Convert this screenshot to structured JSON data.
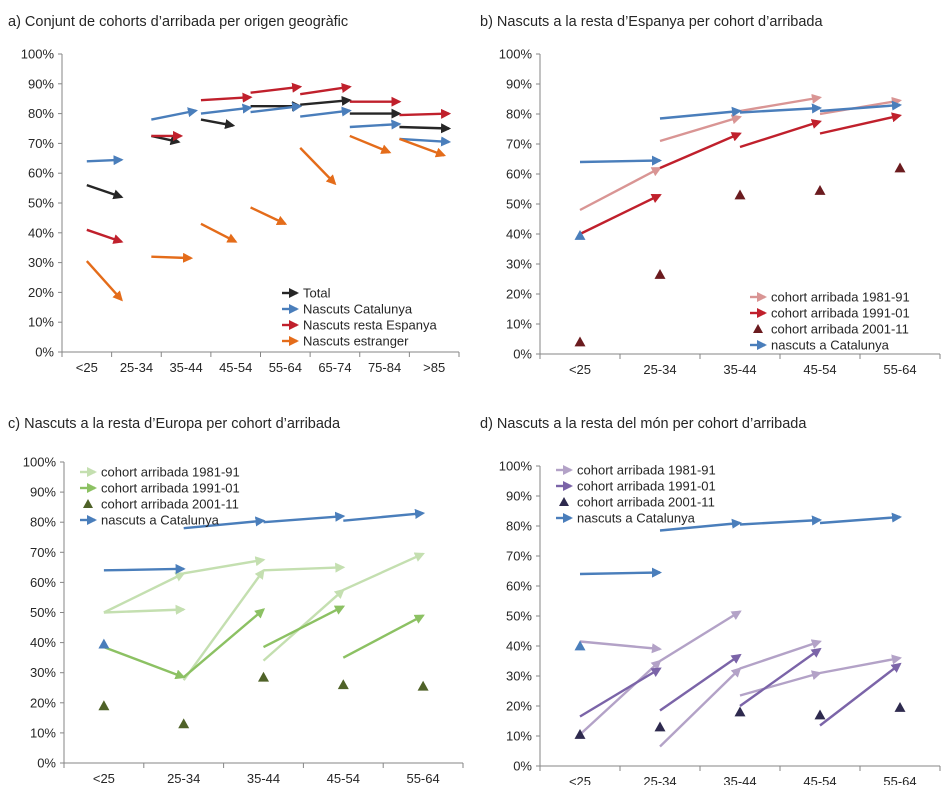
{
  "chart_data": [
    {
      "type": "arrow-scatter",
      "title": "a) Conjunt de cohorts d’arribada per origen geogràfic",
      "categories": [
        "<25",
        "25-34",
        "35-44",
        "45-54",
        "55-64",
        "65-74",
        "75-84",
        ">85"
      ],
      "yticks": [
        "0%",
        "10%",
        "20%",
        "30%",
        "40%",
        "50%",
        "60%",
        "70%",
        "80%",
        "90%",
        "100%"
      ],
      "ylim": [
        0,
        100
      ],
      "legend": {
        "placement": "bottom-right",
        "entries": [
          {
            "label": "Total",
            "color": "#262626",
            "kind": "arrow"
          },
          {
            "label": "Nascuts Catalunya",
            "color": "#4a7ebb",
            "kind": "arrow"
          },
          {
            "label": "Nascuts resta Espanya",
            "color": "#c0202c",
            "kind": "arrow"
          },
          {
            "label": "Nascuts estranger",
            "color": "#e46c1a",
            "kind": "arrow"
          }
        ]
      },
      "arrows": [
        {
          "color": "#262626",
          "x": [
            0.0,
            0.7
          ],
          "y": [
            56,
            52
          ]
        },
        {
          "color": "#262626",
          "x": [
            1.3,
            1.85
          ],
          "y": [
            72.5,
            70.5
          ]
        },
        {
          "color": "#262626",
          "x": [
            2.3,
            2.95
          ],
          "y": [
            78,
            76
          ]
        },
        {
          "color": "#262626",
          "x": [
            3.3,
            4.3
          ],
          "y": [
            82.5,
            82.5
          ]
        },
        {
          "color": "#262626",
          "x": [
            4.3,
            5.3
          ],
          "y": [
            83,
            84.5
          ]
        },
        {
          "color": "#262626",
          "x": [
            5.3,
            6.3
          ],
          "y": [
            80,
            80
          ]
        },
        {
          "color": "#262626",
          "x": [
            6.3,
            7.3
          ],
          "y": [
            75.5,
            75
          ]
        },
        {
          "color": "#4a7ebb",
          "x": [
            0.0,
            0.7
          ],
          "y": [
            64,
            64.5
          ]
        },
        {
          "color": "#4a7ebb",
          "x": [
            1.3,
            2.2
          ],
          "y": [
            78,
            81
          ]
        },
        {
          "color": "#4a7ebb",
          "x": [
            2.3,
            3.3
          ],
          "y": [
            80,
            82
          ]
        },
        {
          "color": "#4a7ebb",
          "x": [
            3.3,
            4.3
          ],
          "y": [
            80.5,
            82.5
          ]
        },
        {
          "color": "#4a7ebb",
          "x": [
            4.3,
            5.3
          ],
          "y": [
            79,
            81
          ]
        },
        {
          "color": "#4a7ebb",
          "x": [
            5.3,
            6.3
          ],
          "y": [
            75.5,
            76.5
          ]
        },
        {
          "color": "#4a7ebb",
          "x": [
            6.3,
            7.3
          ],
          "y": [
            71.5,
            70.5
          ]
        },
        {
          "color": "#c0202c",
          "x": [
            0.0,
            0.7
          ],
          "y": [
            41,
            37
          ]
        },
        {
          "color": "#c0202c",
          "x": [
            1.3,
            1.9
          ],
          "y": [
            72.5,
            72.5
          ]
        },
        {
          "color": "#c0202c",
          "x": [
            2.3,
            3.3
          ],
          "y": [
            84.5,
            85.5
          ]
        },
        {
          "color": "#c0202c",
          "x": [
            3.3,
            4.3
          ],
          "y": [
            87,
            89
          ]
        },
        {
          "color": "#c0202c",
          "x": [
            4.3,
            5.3
          ],
          "y": [
            86.5,
            89
          ]
        },
        {
          "color": "#c0202c",
          "x": [
            5.3,
            6.3
          ],
          "y": [
            84,
            84
          ]
        },
        {
          "color": "#c0202c",
          "x": [
            6.3,
            7.3
          ],
          "y": [
            79.5,
            80
          ]
        },
        {
          "color": "#e46c1a",
          "x": [
            0.0,
            0.7
          ],
          "y": [
            30.5,
            17.5
          ]
        },
        {
          "color": "#e46c1a",
          "x": [
            1.3,
            2.1
          ],
          "y": [
            32,
            31.5
          ]
        },
        {
          "color": "#e46c1a",
          "x": [
            2.3,
            3.0
          ],
          "y": [
            43,
            37
          ]
        },
        {
          "color": "#e46c1a",
          "x": [
            3.3,
            4.0
          ],
          "y": [
            48.5,
            43
          ]
        },
        {
          "color": "#e46c1a",
          "x": [
            4.3,
            5.0
          ],
          "y": [
            68.5,
            56.5
          ]
        },
        {
          "color": "#e46c1a",
          "x": [
            5.3,
            6.1
          ],
          "y": [
            72.5,
            67
          ]
        },
        {
          "color": "#e46c1a",
          "x": [
            6.3,
            7.2
          ],
          "y": [
            71.5,
            66
          ]
        }
      ],
      "markers": []
    },
    {
      "type": "arrow-scatter",
      "title": "b) Nascuts a la resta d’Espanya per cohort d’arribada",
      "categories": [
        "<25",
        "25-34",
        "35-44",
        "45-54",
        "55-64"
      ],
      "yticks": [
        "0%",
        "10%",
        "20%",
        "30%",
        "40%",
        "50%",
        "60%",
        "70%",
        "80%",
        "90%",
        "100%"
      ],
      "ylim": [
        0,
        100
      ],
      "legend": {
        "placement": "bottom-right",
        "entries": [
          {
            "label": "cohort arribada 1981-91",
            "color": "#d99594",
            "kind": "arrow"
          },
          {
            "label": "cohort arribada 1991-01",
            "color": "#c0202c",
            "kind": "arrow"
          },
          {
            "label": "cohort arribada 2001-11",
            "color": "#6b1b1f",
            "kind": "triangle"
          },
          {
            "label": "nascuts a Catalunya",
            "color": "#4a7ebb",
            "kind": "arrow"
          }
        ]
      },
      "arrows": [
        {
          "color": "#d99594",
          "x": [
            0.0,
            1.0
          ],
          "y": [
            48,
            62
          ]
        },
        {
          "color": "#d99594",
          "x": [
            1.0,
            2.0
          ],
          "y": [
            71,
            79
          ]
        },
        {
          "color": "#d99594",
          "x": [
            2.0,
            3.0
          ],
          "y": [
            81,
            85.5
          ]
        },
        {
          "color": "#d99594",
          "x": [
            3.0,
            4.0
          ],
          "y": [
            80,
            84.5
          ]
        },
        {
          "color": "#c0202c",
          "x": [
            0.0,
            1.0
          ],
          "y": [
            40,
            53
          ]
        },
        {
          "color": "#c0202c",
          "x": [
            1.0,
            2.0
          ],
          "y": [
            62,
            73.5
          ]
        },
        {
          "color": "#c0202c",
          "x": [
            2.0,
            3.0
          ],
          "y": [
            69,
            77.5
          ]
        },
        {
          "color": "#c0202c",
          "x": [
            3.0,
            4.0
          ],
          "y": [
            73.5,
            79.5
          ]
        },
        {
          "color": "#4a7ebb",
          "x": [
            0.0,
            1.0
          ],
          "y": [
            64,
            64.5
          ]
        },
        {
          "color": "#4a7ebb",
          "x": [
            1.0,
            2.0
          ],
          "y": [
            78.5,
            81
          ]
        },
        {
          "color": "#4a7ebb",
          "x": [
            2.0,
            3.0
          ],
          "y": [
            80.5,
            82
          ]
        },
        {
          "color": "#4a7ebb",
          "x": [
            3.0,
            4.0
          ],
          "y": [
            81,
            83
          ]
        }
      ],
      "markers": [
        {
          "color": "#6b1b1f",
          "shape": "triangle",
          "x": 0,
          "y": 4
        },
        {
          "color": "#6b1b1f",
          "shape": "triangle",
          "x": 1,
          "y": 26.5
        },
        {
          "color": "#6b1b1f",
          "shape": "triangle",
          "x": 2,
          "y": 53
        },
        {
          "color": "#6b1b1f",
          "shape": "triangle",
          "x": 3,
          "y": 54.5
        },
        {
          "color": "#6b1b1f",
          "shape": "triangle",
          "x": 4,
          "y": 62
        },
        {
          "color": "#4a7ebb",
          "shape": "triangle",
          "x": 0,
          "y": 39.5
        }
      ]
    },
    {
      "type": "arrow-scatter",
      "title": "c) Nascuts a la resta d’Europa per cohort d’arribada",
      "categories": [
        "<25",
        "25-34",
        "35-44",
        "45-54",
        "55-64"
      ],
      "yticks": [
        "0%",
        "10%",
        "20%",
        "30%",
        "40%",
        "50%",
        "60%",
        "70%",
        "80%",
        "90%",
        "100%"
      ],
      "ylim": [
        0,
        100
      ],
      "legend": {
        "placement": "top-left",
        "entries": [
          {
            "label": "cohort arribada 1981-91",
            "color": "#c4dfb0",
            "kind": "arrow"
          },
          {
            "label": "cohort arribada 1991-01",
            "color": "#8cc163",
            "kind": "arrow"
          },
          {
            "label": "cohort arribada 2001-11",
            "color": "#4f6228",
            "kind": "triangle"
          },
          {
            "label": "nascuts a Catalunya",
            "color": "#4a7ebb",
            "kind": "arrow"
          }
        ]
      },
      "arrows": [
        {
          "color": "#c4dfb0",
          "x": [
            0.0,
            1.0
          ],
          "y": [
            50,
            51
          ]
        },
        {
          "color": "#c4dfb0",
          "x": [
            1.0,
            2.0
          ],
          "y": [
            63,
            67.5
          ]
        },
        {
          "color": "#c4dfb0",
          "x": [
            1.0,
            2.0
          ],
          "y": [
            27.5,
            64
          ]
        },
        {
          "color": "#c4dfb0",
          "x": [
            2.0,
            3.0
          ],
          "y": [
            64,
            65
          ]
        },
        {
          "color": "#c4dfb0",
          "x": [
            2.0,
            3.0
          ],
          "y": [
            34,
            57.5
          ]
        },
        {
          "color": "#c4dfb0",
          "x": [
            3.0,
            4.0
          ],
          "y": [
            57.5,
            69.5
          ]
        },
        {
          "color": "#c4dfb0",
          "x": [
            0.0,
            1.0
          ],
          "y": [
            50,
            63
          ]
        },
        {
          "color": "#8cc163",
          "x": [
            0.0,
            1.0
          ],
          "y": [
            38.5,
            28.5
          ]
        },
        {
          "color": "#8cc163",
          "x": [
            1.0,
            2.0
          ],
          "y": [
            28.5,
            51
          ]
        },
        {
          "color": "#8cc163",
          "x": [
            2.0,
            3.0
          ],
          "y": [
            38.5,
            52
          ]
        },
        {
          "color": "#8cc163",
          "x": [
            3.0,
            4.0
          ],
          "y": [
            35,
            49
          ]
        },
        {
          "color": "#4a7ebb",
          "x": [
            0.0,
            1.0
          ],
          "y": [
            64,
            64.5
          ]
        },
        {
          "color": "#4a7ebb",
          "x": [
            1.0,
            2.0
          ],
          "y": [
            78,
            80.5
          ]
        },
        {
          "color": "#4a7ebb",
          "x": [
            2.0,
            3.0
          ],
          "y": [
            80,
            82
          ]
        },
        {
          "color": "#4a7ebb",
          "x": [
            3.0,
            4.0
          ],
          "y": [
            80.5,
            83
          ]
        }
      ],
      "markers": [
        {
          "color": "#4f6228",
          "shape": "triangle",
          "x": 0,
          "y": 19
        },
        {
          "color": "#4f6228",
          "shape": "triangle",
          "x": 1,
          "y": 13
        },
        {
          "color": "#4f6228",
          "shape": "triangle",
          "x": 2,
          "y": 28.5
        },
        {
          "color": "#4f6228",
          "shape": "triangle",
          "x": 3,
          "y": 26
        },
        {
          "color": "#4f6228",
          "shape": "triangle",
          "x": 4,
          "y": 25.5
        },
        {
          "color": "#4a7ebb",
          "shape": "triangle",
          "x": 0,
          "y": 39.5
        }
      ]
    },
    {
      "type": "arrow-scatter",
      "title": "d) Nascuts a la resta del món per cohort d’arribada",
      "categories": [
        "<25",
        "25-34",
        "35-44",
        "45-54",
        "55-64"
      ],
      "yticks": [
        "0%",
        "10%",
        "20%",
        "30%",
        "40%",
        "50%",
        "60%",
        "70%",
        "80%",
        "90%",
        "100%"
      ],
      "ylim": [
        0,
        100
      ],
      "legend": {
        "placement": "top-left",
        "entries": [
          {
            "label": "cohort arribada 1981-91",
            "color": "#b3a2c7",
            "kind": "arrow"
          },
          {
            "label": "cohort arribada 1991-01",
            "color": "#7b64a8",
            "kind": "arrow"
          },
          {
            "label": "cohort arribada 2001-11",
            "color": "#2e2a4e",
            "kind": "triangle"
          },
          {
            "label": "nascuts a Catalunya",
            "color": "#4a7ebb",
            "kind": "arrow"
          }
        ]
      },
      "arrows": [
        {
          "color": "#b3a2c7",
          "x": [
            0.0,
            1.0
          ],
          "y": [
            41.5,
            39
          ]
        },
        {
          "color": "#b3a2c7",
          "x": [
            0.0,
            1.0
          ],
          "y": [
            10.5,
            35
          ]
        },
        {
          "color": "#b3a2c7",
          "x": [
            1.0,
            2.0
          ],
          "y": [
            35,
            51.5
          ]
        },
        {
          "color": "#b3a2c7",
          "x": [
            1.0,
            2.0
          ],
          "y": [
            6.5,
            32.5
          ]
        },
        {
          "color": "#b3a2c7",
          "x": [
            2.0,
            3.0
          ],
          "y": [
            32.5,
            41.5
          ]
        },
        {
          "color": "#b3a2c7",
          "x": [
            2.0,
            3.0
          ],
          "y": [
            23.5,
            31
          ]
        },
        {
          "color": "#b3a2c7",
          "x": [
            3.0,
            4.0
          ],
          "y": [
            31,
            36
          ]
        },
        {
          "color": "#7b64a8",
          "x": [
            0.0,
            1.0
          ],
          "y": [
            16.5,
            32.5
          ]
        },
        {
          "color": "#7b64a8",
          "x": [
            1.0,
            2.0
          ],
          "y": [
            18.5,
            37
          ]
        },
        {
          "color": "#7b64a8",
          "x": [
            2.0,
            3.0
          ],
          "y": [
            20,
            39
          ]
        },
        {
          "color": "#7b64a8",
          "x": [
            3.0,
            4.0
          ],
          "y": [
            13.5,
            34
          ]
        },
        {
          "color": "#4a7ebb",
          "x": [
            0.0,
            1.0
          ],
          "y": [
            64,
            64.5
          ]
        },
        {
          "color": "#4a7ebb",
          "x": [
            1.0,
            2.0
          ],
          "y": [
            78.5,
            81
          ]
        },
        {
          "color": "#4a7ebb",
          "x": [
            2.0,
            3.0
          ],
          "y": [
            80.5,
            82
          ]
        },
        {
          "color": "#4a7ebb",
          "x": [
            3.0,
            4.0
          ],
          "y": [
            81,
            83
          ]
        }
      ],
      "markers": [
        {
          "color": "#2e2a4e",
          "shape": "triangle",
          "x": 0,
          "y": 10.5
        },
        {
          "color": "#2e2a4e",
          "shape": "triangle",
          "x": 1,
          "y": 13
        },
        {
          "color": "#2e2a4e",
          "shape": "triangle",
          "x": 2,
          "y": 18
        },
        {
          "color": "#2e2a4e",
          "shape": "triangle",
          "x": 3,
          "y": 17
        },
        {
          "color": "#2e2a4e",
          "shape": "triangle",
          "x": 4,
          "y": 19.5
        },
        {
          "color": "#4a7ebb",
          "shape": "triangle",
          "x": 0,
          "y": 40
        }
      ]
    }
  ]
}
